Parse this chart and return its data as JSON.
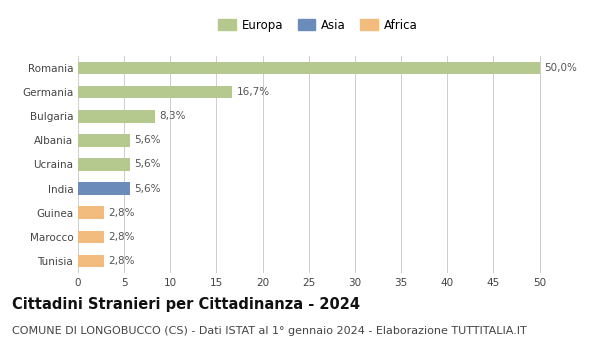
{
  "categories": [
    "Romania",
    "Germania",
    "Bulgaria",
    "Albania",
    "Ucraina",
    "India",
    "Guinea",
    "Marocco",
    "Tunisia"
  ],
  "values": [
    50.0,
    16.7,
    8.3,
    5.6,
    5.6,
    5.6,
    2.8,
    2.8,
    2.8
  ],
  "labels": [
    "50,0%",
    "16,7%",
    "8,3%",
    "5,6%",
    "5,6%",
    "5,6%",
    "2,8%",
    "2,8%",
    "2,8%"
  ],
  "colors": [
    "#b5c98e",
    "#b5c98e",
    "#b5c98e",
    "#b5c98e",
    "#b5c98e",
    "#6b8cba",
    "#f2bc7e",
    "#f2bc7e",
    "#f2bc7e"
  ],
  "legend_items": [
    {
      "label": "Europa",
      "color": "#b5c98e"
    },
    {
      "label": "Asia",
      "color": "#6b8cba"
    },
    {
      "label": "Africa",
      "color": "#f2bc7e"
    }
  ],
  "xlim": [
    0,
    52
  ],
  "xticks": [
    0,
    5,
    10,
    15,
    20,
    25,
    30,
    35,
    40,
    45,
    50
  ],
  "title": "Cittadini Stranieri per Cittadinanza - 2024",
  "subtitle": "COMUNE DI LONGOBUCCO (CS) - Dati ISTAT al 1° gennaio 2024 - Elaborazione TUTTITALIA.IT",
  "title_fontsize": 10.5,
  "subtitle_fontsize": 8.0,
  "label_fontsize": 7.5,
  "tick_fontsize": 7.5,
  "legend_fontsize": 8.5,
  "background_color": "#ffffff",
  "grid_color": "#cccccc",
  "bar_height": 0.52
}
